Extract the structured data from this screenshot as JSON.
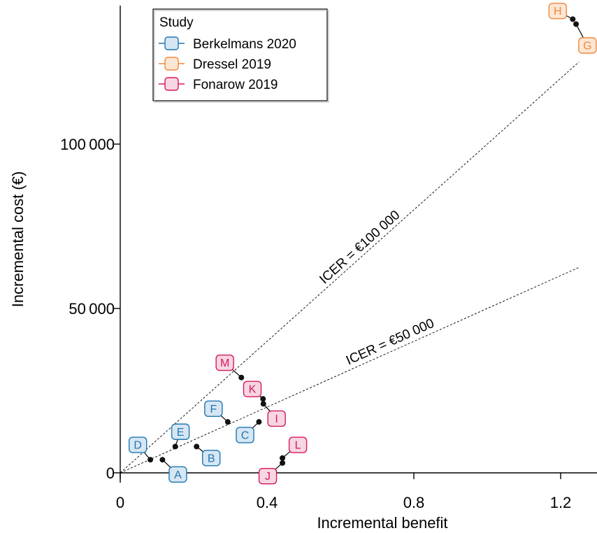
{
  "chart_data": {
    "type": "scatter",
    "xlabel": "Incremental benefit",
    "ylabel": "Incremental cost (€)",
    "xlim": [
      0,
      1.3
    ],
    "ylim": [
      -3000,
      143000
    ],
    "x_ticks": [
      {
        "value": 0,
        "label": "0"
      },
      {
        "value": 0.4,
        "label": "0.4"
      },
      {
        "value": 0.8,
        "label": "0.8"
      },
      {
        "value": 1.2,
        "label": "1.2"
      }
    ],
    "y_ticks": [
      {
        "value": 0,
        "label": "0"
      },
      {
        "value": 50000,
        "label": "50 000"
      },
      {
        "value": 100000,
        "label": "100 000"
      }
    ],
    "legend": {
      "title": "Study",
      "placement": "top-left",
      "entries": [
        {
          "name": "Berkelmans 2020",
          "color": "#1f77b4",
          "fill": "#d6e6f3"
        },
        {
          "name": "Dressel 2019",
          "color": "#f0883e",
          "fill": "#fce6d4"
        },
        {
          "name": "Fonarow 2019",
          "color": "#d6185f",
          "fill": "#f7d6e3"
        }
      ]
    },
    "reference_lines": [
      {
        "label": "ICER = €100 000",
        "slope": 100000,
        "x_end": 1.25
      },
      {
        "label": "ICER = €50 000",
        "slope": 50000,
        "x_end": 1.25
      }
    ],
    "points": [
      {
        "label": "A",
        "study": "Berkelmans 2020",
        "x": 0.115,
        "y": 4000,
        "label_x": 0.157,
        "label_y": -500
      },
      {
        "label": "B",
        "study": "Berkelmans 2020",
        "x": 0.208,
        "y": 8000,
        "label_x": 0.248,
        "label_y": 4500
      },
      {
        "label": "C",
        "study": "Berkelmans 2020",
        "x": 0.378,
        "y": 15500,
        "label_x": 0.34,
        "label_y": 11500
      },
      {
        "label": "D",
        "study": "Berkelmans 2020",
        "x": 0.082,
        "y": 4000,
        "label_x": 0.048,
        "label_y": 8500
      },
      {
        "label": "E",
        "study": "Berkelmans 2020",
        "x": 0.15,
        "y": 8000,
        "label_x": 0.164,
        "label_y": 12500
      },
      {
        "label": "F",
        "study": "Berkelmans 2020",
        "x": 0.293,
        "y": 15500,
        "label_x": 0.254,
        "label_y": 19500
      },
      {
        "label": "G",
        "study": "Dressel 2019",
        "x": 1.242,
        "y": 136500,
        "label_x": 1.273,
        "label_y": 130000
      },
      {
        "label": "H",
        "study": "Dressel 2019",
        "x": 1.233,
        "y": 138000,
        "label_x": 1.192,
        "label_y": 140500
      },
      {
        "label": "I",
        "study": "Fonarow 2019",
        "x": 0.39,
        "y": 21000,
        "label_x": 0.426,
        "label_y": 16500
      },
      {
        "label": "J",
        "study": "Fonarow 2019",
        "x": 0.442,
        "y": 3000,
        "label_x": 0.402,
        "label_y": -1000
      },
      {
        "label": "K",
        "study": "Fonarow 2019",
        "x": 0.389,
        "y": 22500,
        "label_x": 0.36,
        "label_y": 25500
      },
      {
        "label": "L",
        "study": "Fonarow 2019",
        "x": 0.442,
        "y": 4500,
        "label_x": 0.484,
        "label_y": 8500
      },
      {
        "label": "M",
        "study": "Fonarow 2019",
        "x": 0.33,
        "y": 29000,
        "label_x": 0.285,
        "label_y": 33500
      }
    ]
  }
}
